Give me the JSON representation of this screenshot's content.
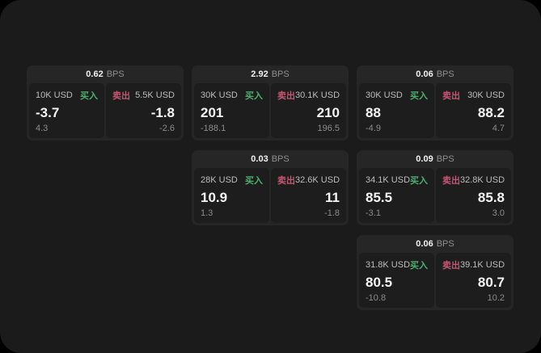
{
  "labels": {
    "bps_unit": "BPS",
    "buy": "买入",
    "sell": "卖出"
  },
  "colors": {
    "buy_green": "#4caf6d",
    "sell_red": "#c75571",
    "window_bg": "#1b1b1c",
    "card_bg": "#262626",
    "panel_bg": "#1d1d1e"
  },
  "cards": [
    {
      "bps": "0.62",
      "buy": {
        "amount": "10K USD",
        "value": "-3.7",
        "sub": "4.3"
      },
      "sell": {
        "amount": "5.5K USD",
        "value": "-1.8",
        "sub": "-2.6"
      }
    },
    {
      "bps": "2.92",
      "buy": {
        "amount": "30K USD",
        "value": "201",
        "sub": "-188.1"
      },
      "sell": {
        "amount": "30.1K USD",
        "value": "210",
        "sub": "196.5"
      }
    },
    {
      "bps": "0.06",
      "buy": {
        "amount": "30K USD",
        "value": "88",
        "sub": "-4.9"
      },
      "sell": {
        "amount": "30K USD",
        "value": "88.2",
        "sub": "4.7"
      }
    },
    {
      "bps": "0.03",
      "buy": {
        "amount": "28K USD",
        "value": "10.9",
        "sub": "1.3"
      },
      "sell": {
        "amount": "32.6K USD",
        "value": "11",
        "sub": "-1.8"
      }
    },
    {
      "bps": "0.09",
      "buy": {
        "amount": "34.1K USD",
        "value": "85.5",
        "sub": "-3.1"
      },
      "sell": {
        "amount": "32.8K USD",
        "value": "85.8",
        "sub": "3.0"
      }
    },
    {
      "bps": "0.06",
      "buy": {
        "amount": "31.8K USD",
        "value": "80.5",
        "sub": "-10.8"
      },
      "sell": {
        "amount": "39.1K USD",
        "value": "80.7",
        "sub": "10.2"
      }
    }
  ]
}
